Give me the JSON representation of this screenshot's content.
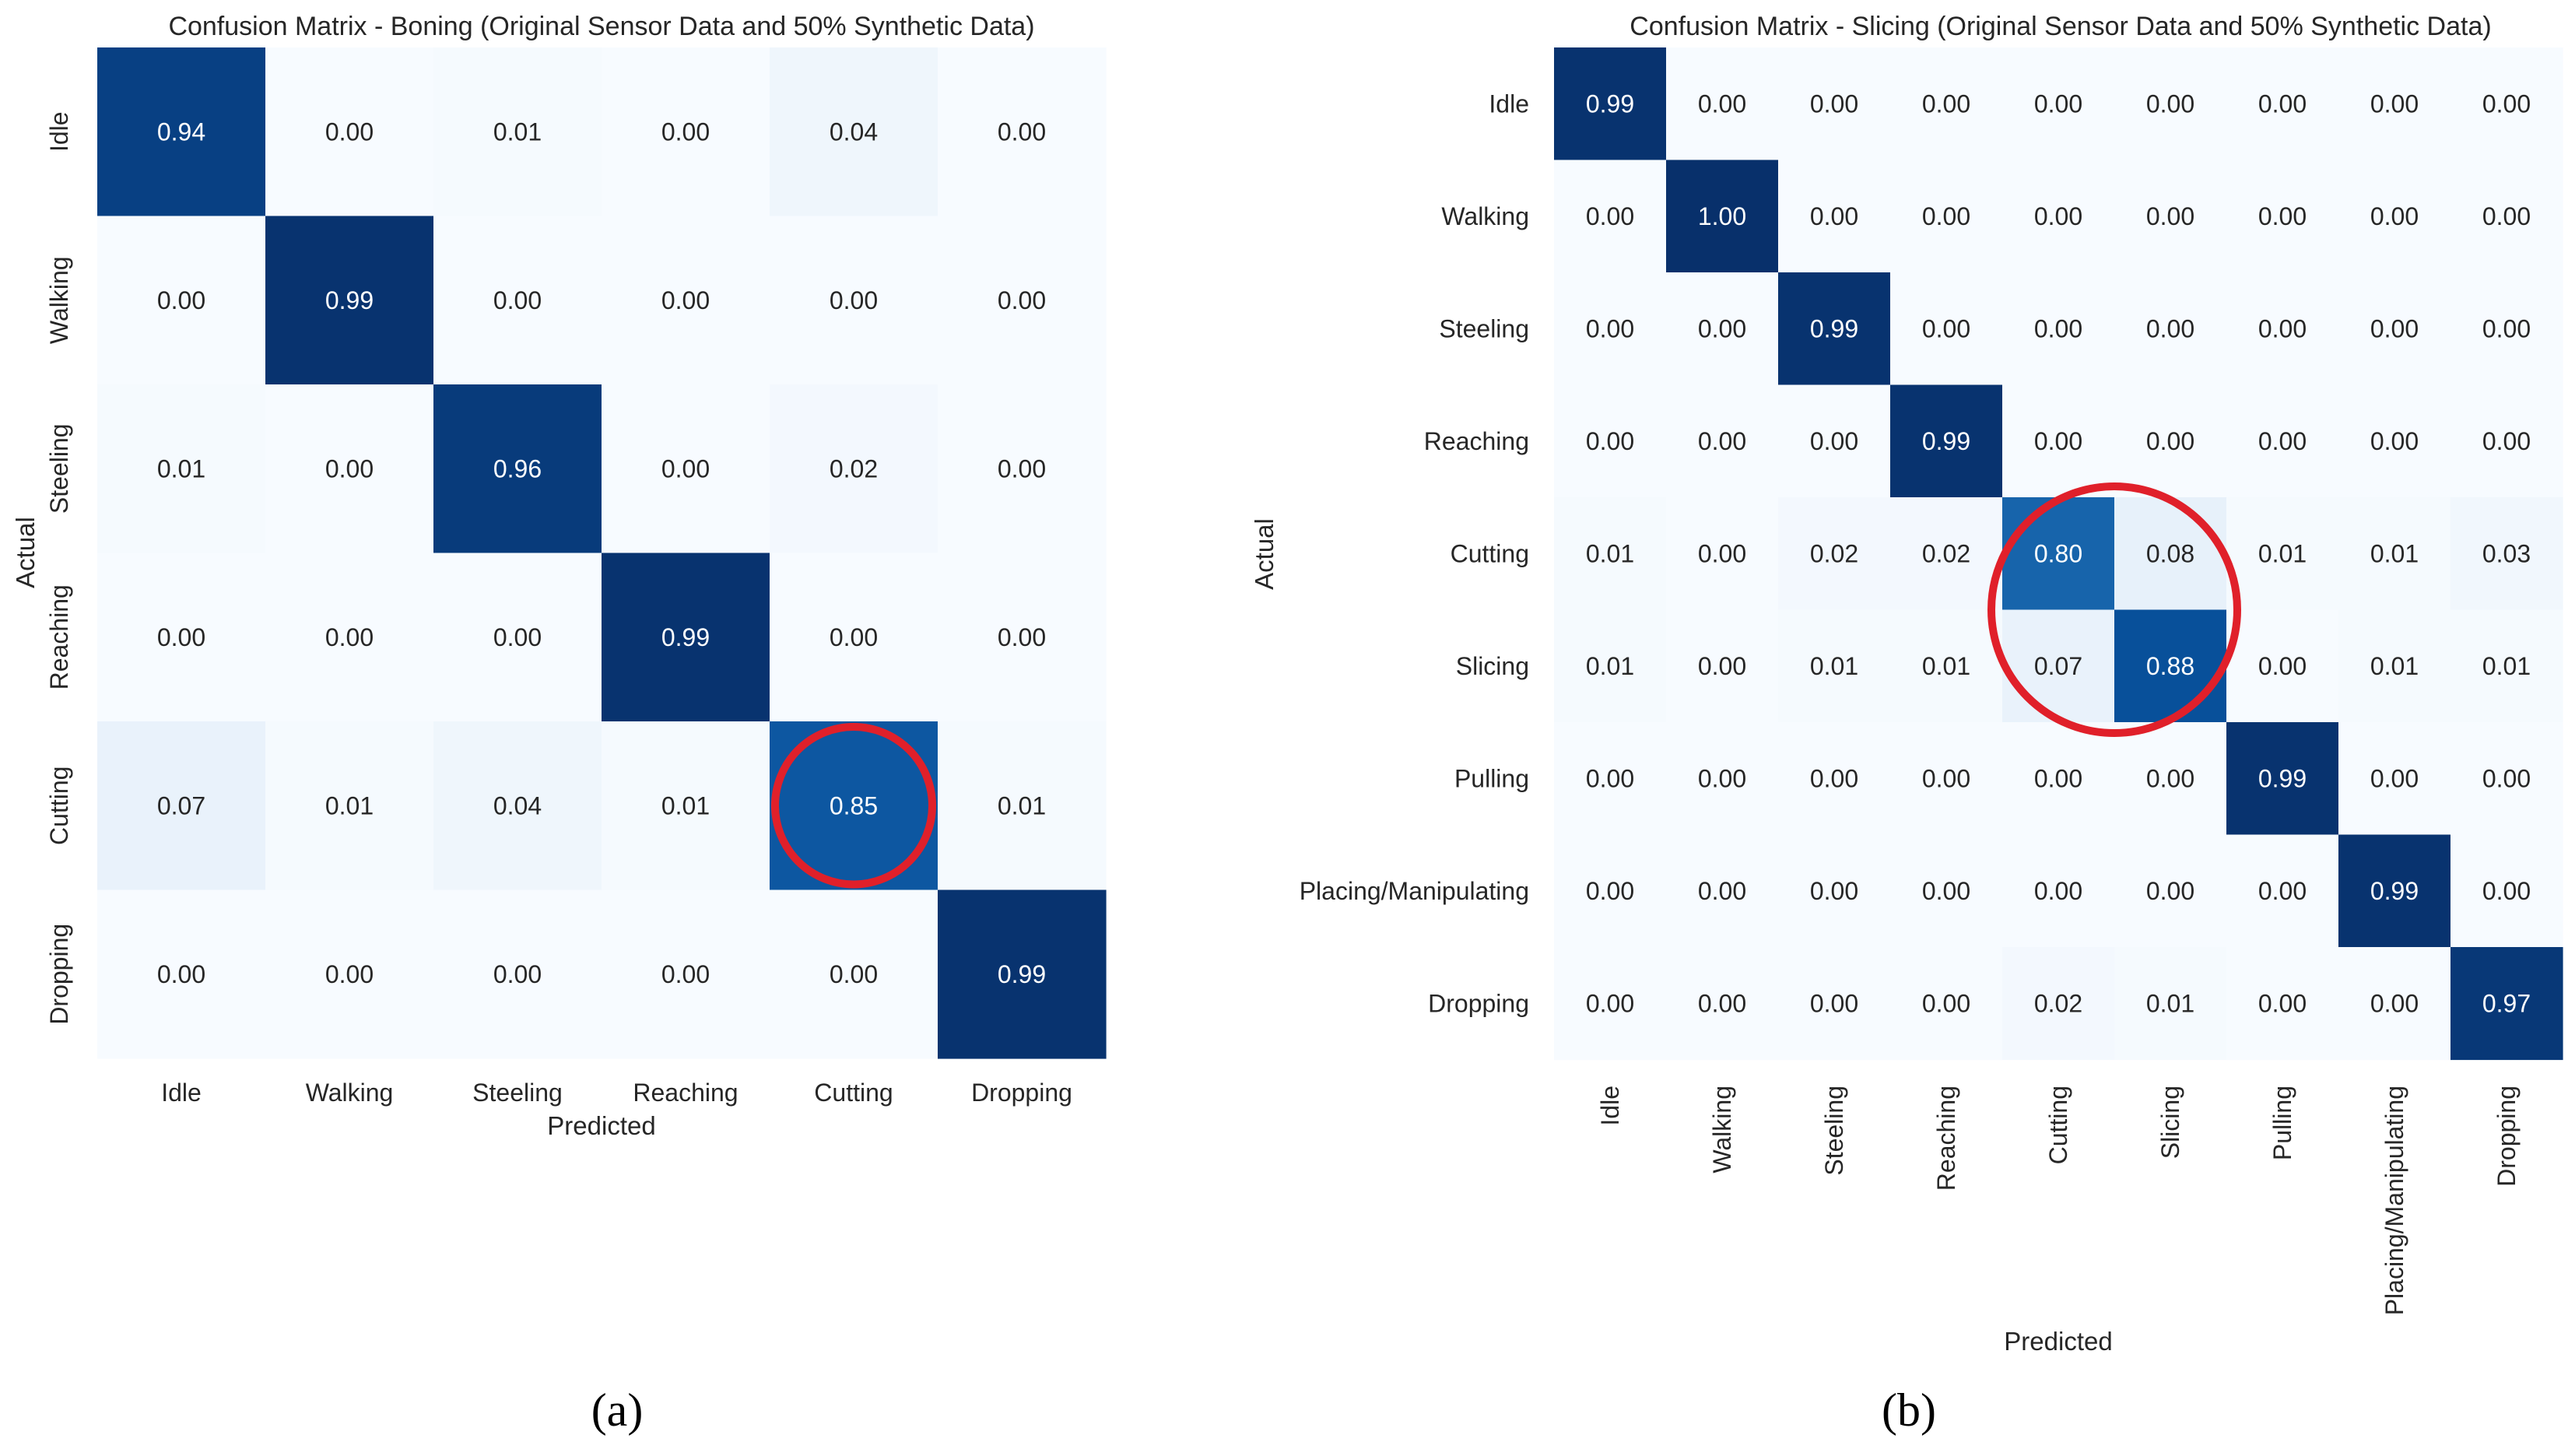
{
  "chart_data": [
    {
      "type": "heatmap",
      "panel_label": "(a)",
      "title": "Confusion Matrix - Boning (Original Sensor Data and 50% Synthetic Data)",
      "xlabel": "Predicted",
      "ylabel": "Actual",
      "categories": [
        "Idle",
        "Walking",
        "Steeling",
        "Reaching",
        "Cutting",
        "Dropping"
      ],
      "values": [
        [
          0.94,
          0.0,
          0.01,
          0.0,
          0.04,
          0.0
        ],
        [
          0.0,
          0.99,
          0.0,
          0.0,
          0.0,
          0.0
        ],
        [
          0.01,
          0.0,
          0.96,
          0.0,
          0.02,
          0.0
        ],
        [
          0.0,
          0.0,
          0.0,
          0.99,
          0.0,
          0.0
        ],
        [
          0.07,
          0.01,
          0.04,
          0.01,
          0.85,
          0.01
        ],
        [
          0.0,
          0.0,
          0.0,
          0.0,
          0.0,
          0.99
        ]
      ],
      "value_range": [
        0,
        1
      ],
      "colormap": "Blues",
      "highlighted_cells": [
        [
          4,
          4
        ]
      ],
      "highlight_color": "#e0202a"
    },
    {
      "type": "heatmap",
      "panel_label": "(b)",
      "title": "Confusion Matrix - Slicing (Original Sensor Data and 50% Synthetic Data)",
      "xlabel": "Predicted",
      "ylabel": "Actual",
      "categories": [
        "Idle",
        "Walking",
        "Steeling",
        "Reaching",
        "Cutting",
        "Slicing",
        "Pulling",
        "Placing/Manipulating",
        "Dropping"
      ],
      "values": [
        [
          0.99,
          0.0,
          0.0,
          0.0,
          0.0,
          0.0,
          0.0,
          0.0,
          0.0
        ],
        [
          0.0,
          1.0,
          0.0,
          0.0,
          0.0,
          0.0,
          0.0,
          0.0,
          0.0
        ],
        [
          0.0,
          0.0,
          0.99,
          0.0,
          0.0,
          0.0,
          0.0,
          0.0,
          0.0
        ],
        [
          0.0,
          0.0,
          0.0,
          0.99,
          0.0,
          0.0,
          0.0,
          0.0,
          0.0
        ],
        [
          0.01,
          0.0,
          0.02,
          0.02,
          0.8,
          0.08,
          0.01,
          0.01,
          0.03
        ],
        [
          0.01,
          0.0,
          0.01,
          0.01,
          0.07,
          0.88,
          0.0,
          0.01,
          0.01
        ],
        [
          0.0,
          0.0,
          0.0,
          0.0,
          0.0,
          0.0,
          0.99,
          0.0,
          0.0
        ],
        [
          0.0,
          0.0,
          0.0,
          0.0,
          0.0,
          0.0,
          0.0,
          0.99,
          0.0
        ],
        [
          0.0,
          0.0,
          0.0,
          0.0,
          0.02,
          0.01,
          0.0,
          0.0,
          0.97
        ]
      ],
      "value_range": [
        0,
        1
      ],
      "colormap": "Blues",
      "highlighted_cells": [
        [
          4,
          4
        ],
        [
          4,
          5
        ],
        [
          5,
          4
        ],
        [
          5,
          5
        ]
      ],
      "highlight_color": "#e0202a"
    }
  ]
}
